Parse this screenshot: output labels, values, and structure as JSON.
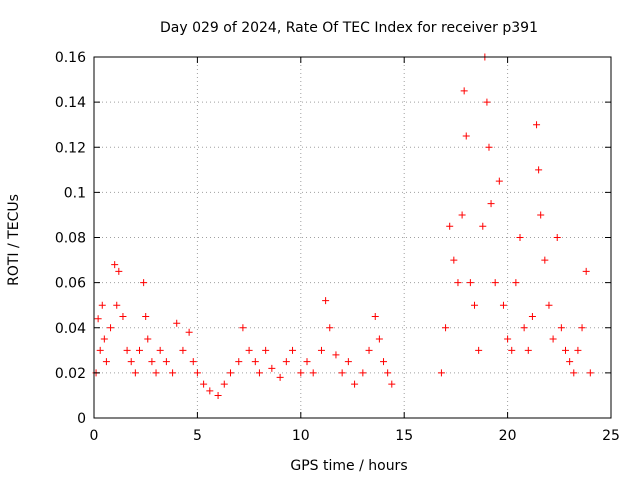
{
  "chart_data": {
    "type": "scatter",
    "title": "Day 029 of 2024, Rate Of TEC Index for receiver p391",
    "xlabel": "GPS time / hours",
    "ylabel": "ROTI / TECUs",
    "xlim": [
      0,
      25
    ],
    "ylim": [
      0,
      0.16
    ],
    "x_ticks": [
      "0",
      "5",
      "10",
      "15",
      "20",
      "25"
    ],
    "y_ticks": [
      "0",
      "0.02",
      "0.04",
      "0.06",
      "0.08",
      "0.1",
      "0.12",
      "0.14",
      "0.16"
    ],
    "grid": true,
    "marker": "+",
    "color": "#ff0000",
    "series": [
      {
        "x": [
          0.1,
          0.2,
          0.3,
          0.4,
          0.5,
          0.6,
          0.8,
          1.0,
          1.1,
          1.2,
          1.4,
          1.6,
          1.8,
          2.0,
          2.2,
          2.4,
          2.5,
          2.6,
          2.8,
          3.0,
          3.2,
          3.5,
          3.8,
          4.0,
          4.3,
          4.6,
          4.8,
          5.0,
          5.3,
          5.6,
          6.0,
          6.3,
          6.6,
          7.0,
          7.2,
          7.5,
          7.8,
          8.0,
          8.3,
          8.6,
          9.0,
          9.3,
          9.6,
          10.0,
          10.3,
          10.6,
          11.0,
          11.2,
          11.4,
          11.7,
          12.0,
          12.3,
          12.6,
          13.0,
          13.3,
          13.6,
          13.8,
          14.0,
          14.2,
          14.4,
          16.8,
          17.0,
          17.2,
          17.4,
          17.6,
          17.8,
          17.9,
          18.0,
          18.2,
          18.4,
          18.6,
          18.8,
          18.9,
          19.0,
          19.1,
          19.2,
          19.4,
          19.6,
          19.8,
          20.0,
          20.2,
          20.4,
          20.6,
          20.8,
          21.0,
          21.2,
          21.4,
          21.5,
          21.6,
          21.8,
          22.0,
          22.2,
          22.4,
          22.6,
          22.8,
          23.0,
          23.2,
          23.4,
          23.6,
          23.8,
          24.0
        ],
        "y": [
          0.02,
          0.044,
          0.03,
          0.05,
          0.035,
          0.025,
          0.04,
          0.068,
          0.05,
          0.065,
          0.045,
          0.03,
          0.025,
          0.02,
          0.03,
          0.06,
          0.045,
          0.035,
          0.025,
          0.02,
          0.03,
          0.025,
          0.02,
          0.042,
          0.03,
          0.038,
          0.025,
          0.02,
          0.015,
          0.012,
          0.01,
          0.015,
          0.02,
          0.025,
          0.04,
          0.03,
          0.025,
          0.02,
          0.03,
          0.022,
          0.018,
          0.025,
          0.03,
          0.02,
          0.025,
          0.02,
          0.03,
          0.052,
          0.04,
          0.028,
          0.02,
          0.025,
          0.015,
          0.02,
          0.03,
          0.045,
          0.035,
          0.025,
          0.02,
          0.015,
          0.02,
          0.04,
          0.085,
          0.07,
          0.06,
          0.09,
          0.145,
          0.125,
          0.06,
          0.05,
          0.03,
          0.085,
          0.16,
          0.14,
          0.12,
          0.095,
          0.06,
          0.105,
          0.05,
          0.035,
          0.03,
          0.06,
          0.08,
          0.04,
          0.03,
          0.045,
          0.13,
          0.11,
          0.09,
          0.07,
          0.05,
          0.035,
          0.08,
          0.04,
          0.03,
          0.025,
          0.02,
          0.03,
          0.04,
          0.065,
          0.02
        ]
      }
    ]
  }
}
